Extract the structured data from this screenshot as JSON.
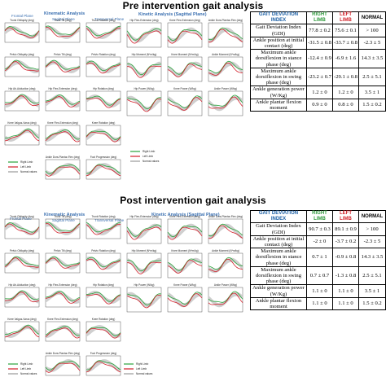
{
  "pre": {
    "title": "Pre intervention gait analysis",
    "headers": {
      "kinematic": "Kinematic Analysis",
      "kinetic": "Kinetic Analysis (Sagittal Plane)",
      "frontal": "Frontal Plane",
      "sagittal": "Sagittal Plane",
      "transversal": "Transversal Plane"
    },
    "legend": [
      "Right Limb",
      "Left Limb",
      "Normal values"
    ],
    "table": {
      "head": [
        "GAIT DEVIATION INDEX",
        "RIGHT LIMB",
        "LEFT LIMB",
        "NORMAL"
      ],
      "rows": [
        [
          "Gait Deviation Index (GDI)",
          "77.8 ± 0.2",
          "75.6 ± 0.1",
          "> 100"
        ],
        [
          "Ankle position at initial contact (deg)",
          "-31.5 ± 0.8",
          "-33.7 ± 0.8",
          "-2.3 ± 5"
        ],
        [
          "Maximum ankle dorsiflexion in stance phase (deg)",
          "-12.4 ± 0.9",
          "-6.9 ± 1.6",
          "14.3 ± 3.5"
        ],
        [
          "Maximum ankle dorsiflexion in swing phase (deg)",
          "-23.2 ± 0.7",
          "-29.1 ± 0.8",
          "2.5 ± 5.1"
        ],
        [
          "Ankle generation power (W/Kg)",
          "1.2 ± 0",
          "1.2 ± 0",
          "3.5 ± 1"
        ],
        [
          "Ankle plantar flexion moment",
          "0.9 ± 0",
          "0.8 ± 0",
          "1.5 ± 0.2"
        ]
      ]
    },
    "panels": [
      "Trunk Obliquity (deg)",
      "Trunk Tilt (deg)",
      "Trunk Rotation (deg)",
      "Hip Flex-Extension (deg)",
      "Knee Flex-Extension (deg)",
      "Ankle Dors-Plantar-Flex (deg)",
      "Pelvic Obliquity (deg)",
      "Pelvic Tilt (deg)",
      "Pelvic Rotation (deg)",
      "Hip Moment (N*m/kg)",
      "Knee Moment (N*m/kg)",
      "Ankle Moment (N*m/kg)",
      "Hip Ab-Adduction (deg)",
      "Hip Flex-Extension (deg)",
      "Hip Rotation (deg)",
      "Hip Power (W/kg)",
      "Knee Power (W/kg)",
      "Ankle Power (W/kg)",
      "Knee Valgus-Varus (deg)",
      "Knee Flex-Extension (deg)",
      "Knee Rotation (deg)",
      "",
      "",
      "",
      "",
      "Ankle Dors-Plantar-Flex (deg)",
      "Foot Progression (deg)",
      "",
      "",
      ""
    ]
  },
  "post": {
    "title": "Post intervention gait analysis",
    "headers": {
      "kinematic": "Kinematic Analysis",
      "kinetic": "Kinetic Analysis (Sagittal Plane)",
      "frontal": "Frontal Plane",
      "sagittal": "Sagittal Plane",
      "transversal": "Transversal Plane"
    },
    "legend": [
      "Right Limb",
      "Left Limb",
      "Normal values"
    ],
    "table": {
      "head": [
        "GAIT DEVIATION INDEX",
        "RIGHT LIMB",
        "LEFT LIMB",
        "NORMAL"
      ],
      "rows": [
        [
          "Gait Deviation Index (GDI)",
          "90.7 ± 0.3",
          "89.1 ± 0.9",
          "> 100"
        ],
        [
          "Ankle position at initial contact (deg)",
          "-2 ± 0",
          "-3.7 ± 0.2",
          "-2.3 ± 5"
        ],
        [
          "Maximum ankle dorsiflexion in stance phase (deg)",
          "0.7 ± 1",
          "-0.9 ± 0.8",
          "14.3 ± 3.5"
        ],
        [
          "Maximum ankle dorsiflexion in swing phase (deg)",
          "0.7 ± 0.7",
          "-1.3 ± 0.8",
          "2.5 ± 5.1"
        ],
        [
          "Ankle generation power (W/Kg)",
          "1.1 ± 0",
          "1.1 ± 0",
          "3.5 ± 1"
        ],
        [
          "Ankle plantar flexion moment",
          "1.1 ± 0",
          "1.1 ± 0",
          "1.5 ± 0.2"
        ]
      ]
    },
    "panels": [
      "Trunk Obliquity (deg)",
      "Trunk Tilt (deg)",
      "Trunk Rotation (deg)",
      "Hip Flex-Extension (deg)",
      "Knee Flex-Extension (deg)",
      "Ankle Dors-Plantar-Flex (deg)",
      "Pelvic Obliquity (deg)",
      "Pelvic Tilt (deg)",
      "Pelvic Rotation (deg)",
      "Hip Moment (N*m/kg)",
      "Knee Moment (N*m/kg)",
      "Ankle Moment (N*m/kg)",
      "Hip Ab-Adduction (deg)",
      "Hip Flex-Extension (deg)",
      "Hip Rotation (deg)",
      "Hip Power (W/kg)",
      "Knee Power (W/kg)",
      "Ankle Power (W/kg)",
      "Knee Valgus-Varus (deg)",
      "Knee Flex-Extension (deg)",
      "Knee Rotation (deg)",
      "",
      "",
      "",
      "",
      "Ankle Dors-Plantar-Flex (deg)",
      "Foot Progression (deg)",
      "",
      "",
      ""
    ]
  },
  "colors": {
    "right": "#2aa33c",
    "left": "#d21f2a",
    "normal": "#9a9a9a",
    "header_blue": "#3a6fb0"
  },
  "chart_data": [
    {
      "type": "table",
      "title": "Pre intervention gait analysis",
      "columns": [
        "GAIT DEVIATION INDEX",
        "RIGHT LIMB",
        "LEFT LIMB",
        "NORMAL"
      ],
      "rows": [
        [
          "Gait Deviation Index (GDI)",
          "77.8 ± 0.2",
          "75.6 ± 0.1",
          "> 100"
        ],
        [
          "Ankle position at initial contact (deg)",
          "-31.5 ± 0.8",
          "-33.7 ± 0.8",
          "-2.3 ± 5"
        ],
        [
          "Maximum ankle dorsiflexion in stance phase (deg)",
          "-12.4 ± 0.9",
          "-6.9 ± 1.6",
          "14.3 ± 3.5"
        ],
        [
          "Maximum ankle dorsiflexion in swing phase (deg)",
          "-23.2 ± 0.7",
          "-29.1 ± 0.8",
          "2.5 ± 5.1"
        ],
        [
          "Ankle generation power (W/Kg)",
          "1.2 ± 0",
          "1.2 ± 0",
          "3.5 ± 1"
        ],
        [
          "Ankle plantar flexion moment",
          "0.9 ± 0",
          "0.8 ± 0",
          "1.5 ± 0.2"
        ]
      ]
    },
    {
      "type": "table",
      "title": "Post intervention gait analysis",
      "columns": [
        "GAIT DEVIATION INDEX",
        "RIGHT LIMB",
        "LEFT LIMB",
        "NORMAL"
      ],
      "rows": [
        [
          "Gait Deviation Index (GDI)",
          "90.7 ± 0.3",
          "89.1 ± 0.9",
          "> 100"
        ],
        [
          "Ankle position at initial contact (deg)",
          "-2 ± 0",
          "-3.7 ± 0.2",
          "-2.3 ± 5"
        ],
        [
          "Maximum ankle dorsiflexion in stance phase (deg)",
          "0.7 ± 1",
          "-0.9 ± 0.8",
          "14.3 ± 3.5"
        ],
        [
          "Maximum ankle dorsiflexion in swing phase (deg)",
          "0.7 ± 0.7",
          "-1.3 ± 0.8",
          "2.5 ± 5.1"
        ],
        [
          "Ankle generation power (W/Kg)",
          "1.1 ± 0",
          "1.1 ± 0",
          "3.5 ± 1"
        ],
        [
          "Ankle plantar flexion moment",
          "1.1 ± 0",
          "1.1 ± 0",
          "1.5 ± 0.2"
        ]
      ]
    }
  ]
}
